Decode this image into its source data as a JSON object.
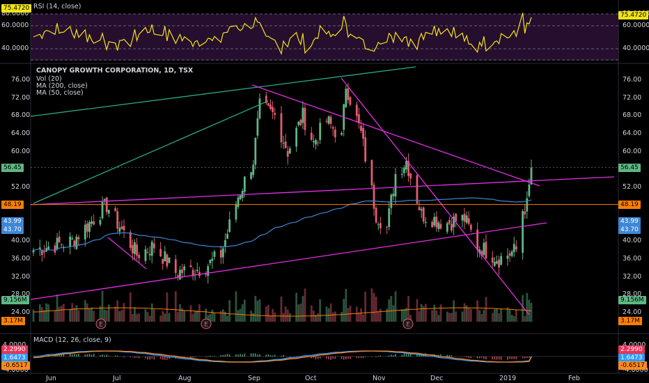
{
  "colors": {
    "background": "#000000",
    "up": "#5fb784",
    "down": "#e15d6f",
    "ma200": "#ff7f00",
    "ma50": "#3e86d6",
    "rsi": "#f2e316",
    "rsi_band": "#2a0f33",
    "trendline_magenta": "#e62ee6",
    "trendline_teal": "#2aa88c",
    "macd": "#2e9bff",
    "signal": "#ff8a1f"
  },
  "rsi_panel": {
    "title": "RSI (14, close)",
    "ticks": [
      "80.0000",
      "60.0000",
      "40.0000"
    ],
    "ticks_right": [
      "80.0000",
      "60.0000",
      "40.0000"
    ],
    "last_value": "75.4720"
  },
  "main_panel": {
    "title": "CANOPY GROWTH CORPORATION, 1D, TSX",
    "indicators": [
      "Vol (20)",
      "MA (200, close)",
      "MA (50, close)"
    ],
    "price_ticks": [
      "76.00",
      "72.00",
      "68.00",
      "64.00",
      "60.00",
      "52.00",
      "40.00",
      "36.00",
      "32.00",
      "28.00",
      "24.00"
    ],
    "badges": {
      "close": "56.45",
      "level": "48.19",
      "ma50": "43.99",
      "ma200": "43.70",
      "volume": "9.156M",
      "volume_ma": "3.17M"
    },
    "earnings_marker": "E"
  },
  "macd_panel": {
    "title": "MACD (12, 26, close, 9)",
    "ticks": [
      "4.0000",
      "-4.0000"
    ],
    "badges": {
      "histogram": "2.2990",
      "macd": "1.6473",
      "signal": "-0.6517"
    }
  },
  "time_axis": [
    "Jun",
    "Jul",
    "Aug",
    "Sep",
    "Oct",
    "Nov",
    "Dec",
    "2019",
    "Feb"
  ],
  "chart_data": {
    "type": "candlestick",
    "title": "CANOPY GROWTH CORPORATION, 1D, TSX",
    "ylim": [
      22,
      78
    ],
    "keypoints": [
      {
        "date": "2018-05-25",
        "price": 38
      },
      {
        "date": "2018-06-12",
        "price": 40
      },
      {
        "date": "2018-06-28",
        "price": 48
      },
      {
        "date": "2018-07-12",
        "price": 37
      },
      {
        "date": "2018-07-20",
        "price": 39
      },
      {
        "date": "2018-07-30",
        "price": 33
      },
      {
        "date": "2018-08-12",
        "price": 34
      },
      {
        "date": "2018-08-20",
        "price": 37
      },
      {
        "date": "2018-08-28",
        "price": 50
      },
      {
        "date": "2018-09-04",
        "price": 58
      },
      {
        "date": "2018-09-07",
        "price": 70
      },
      {
        "date": "2018-09-14",
        "price": 68
      },
      {
        "date": "2018-09-20",
        "price": 60
      },
      {
        "date": "2018-09-27",
        "price": 68
      },
      {
        "date": "2018-10-02",
        "price": 62
      },
      {
        "date": "2018-10-08",
        "price": 67
      },
      {
        "date": "2018-10-15",
        "price": 63
      },
      {
        "date": "2018-10-17",
        "price": 75
      },
      {
        "date": "2018-10-24",
        "price": 64
      },
      {
        "date": "2018-10-31",
        "price": 46
      },
      {
        "date": "2018-11-05",
        "price": 43
      },
      {
        "date": "2018-11-09",
        "price": 55
      },
      {
        "date": "2018-11-14",
        "price": 58
      },
      {
        "date": "2018-11-21",
        "price": 46
      },
      {
        "date": "2018-12-02",
        "price": 44
      },
      {
        "date": "2018-12-11",
        "price": 45
      },
      {
        "date": "2018-12-17",
        "price": 39
      },
      {
        "date": "2018-12-27",
        "price": 36
      },
      {
        "date": "2019-01-04",
        "price": 38
      },
      {
        "date": "2019-01-07",
        "price": 47
      },
      {
        "date": "2019-01-09",
        "price": 48
      },
      {
        "date": "2019-01-11",
        "price": 56
      }
    ],
    "last_close": 56.45,
    "ma50_last": 43.99,
    "ma200_last": 43.7,
    "horizontal_level": 48.19,
    "volume_last": "9.156M",
    "volume_ma_last": "3.17M",
    "rsi_last": 75.472,
    "macd": {
      "histogram": 2.299,
      "macd": 1.6473,
      "signal": -0.6517
    }
  }
}
